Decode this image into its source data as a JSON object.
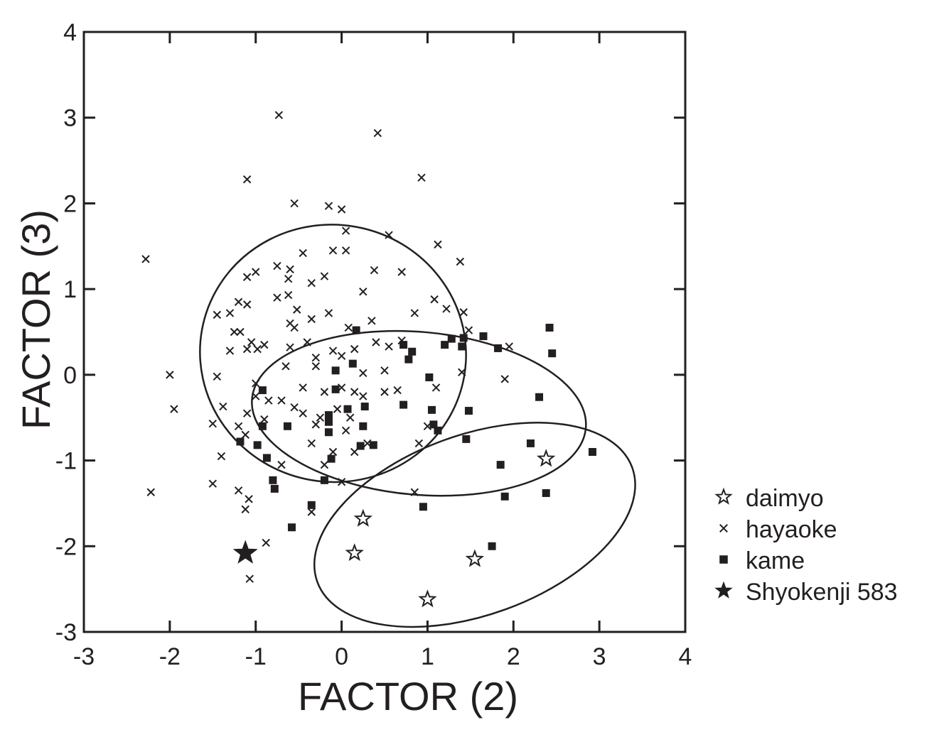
{
  "chart_data": {
    "type": "scatter",
    "xlabel": "FACTOR (2)",
    "ylabel": "FACTOR (3)",
    "xlim": [
      -3,
      4
    ],
    "ylim": [
      -3,
      4
    ],
    "xticks": [
      "-3",
      "-2",
      "-1",
      "0",
      "1",
      "2",
      "3",
      "4"
    ],
    "yticks": [
      "-3",
      "-2",
      "-1",
      "0",
      "1",
      "2",
      "3",
      "4"
    ],
    "grid": false,
    "legend_position": "right-bottom",
    "colors": {
      "ink": "#231f20",
      "background": "#ffffff"
    },
    "series": [
      {
        "name": "daimyo",
        "marker": "star-open",
        "points": [
          [
            2.38,
            -0.98
          ],
          [
            0.25,
            -1.68
          ],
          [
            0.15,
            -2.08
          ],
          [
            1.55,
            -2.15
          ],
          [
            1.0,
            -2.62
          ]
        ]
      },
      {
        "name": "hayaoke",
        "marker": "x",
        "points": [
          [
            -0.73,
            3.03
          ],
          [
            0.42,
            2.82
          ],
          [
            -1.1,
            2.28
          ],
          [
            0.93,
            2.3
          ],
          [
            -0.55,
            2.0
          ],
          [
            -0.15,
            1.97
          ],
          [
            0.0,
            1.93
          ],
          [
            0.05,
            1.68
          ],
          [
            0.55,
            1.63
          ],
          [
            1.12,
            1.52
          ],
          [
            -0.45,
            1.42
          ],
          [
            -0.1,
            1.45
          ],
          [
            0.05,
            1.45
          ],
          [
            1.38,
            1.32
          ],
          [
            -2.28,
            1.35
          ],
          [
            -1.0,
            1.2
          ],
          [
            -0.75,
            1.27
          ],
          [
            -0.6,
            1.23
          ],
          [
            -0.2,
            1.15
          ],
          [
            -0.35,
            1.07
          ],
          [
            0.38,
            1.22
          ],
          [
            0.7,
            1.2
          ],
          [
            -1.1,
            1.14
          ],
          [
            -0.62,
            1.12
          ],
          [
            0.25,
            0.97
          ],
          [
            -0.75,
            0.9
          ],
          [
            -0.62,
            0.93
          ],
          [
            1.08,
            0.88
          ],
          [
            -1.2,
            0.85
          ],
          [
            -1.1,
            0.82
          ],
          [
            -0.52,
            0.76
          ],
          [
            -1.3,
            0.72
          ],
          [
            -1.45,
            0.7
          ],
          [
            -0.15,
            0.72
          ],
          [
            -0.35,
            0.65
          ],
          [
            0.85,
            0.72
          ],
          [
            1.22,
            0.77
          ],
          [
            1.42,
            0.73
          ],
          [
            -0.6,
            0.6
          ],
          [
            -0.55,
            0.55
          ],
          [
            0.35,
            0.63
          ],
          [
            -1.18,
            0.5
          ],
          [
            -1.25,
            0.5
          ],
          [
            -1.05,
            0.38
          ],
          [
            -0.9,
            0.35
          ],
          [
            -0.4,
            0.38
          ],
          [
            -0.6,
            0.32
          ],
          [
            0.08,
            0.55
          ],
          [
            0.7,
            0.4
          ],
          [
            1.48,
            0.52
          ],
          [
            1.95,
            0.33
          ],
          [
            -1.3,
            0.28
          ],
          [
            -1.1,
            0.3
          ],
          [
            -0.98,
            0.3
          ],
          [
            -0.3,
            0.2
          ],
          [
            -0.1,
            0.28
          ],
          [
            0.0,
            0.22
          ],
          [
            0.15,
            0.3
          ],
          [
            0.55,
            0.33
          ],
          [
            0.4,
            0.38
          ],
          [
            -1.45,
            -0.02
          ],
          [
            -2.0,
            0.0
          ],
          [
            -1.0,
            -0.1
          ],
          [
            -0.65,
            0.1
          ],
          [
            -0.3,
            0.1
          ],
          [
            0.25,
            0.02
          ],
          [
            0.5,
            0.05
          ],
          [
            1.4,
            0.03
          ],
          [
            1.9,
            -0.05
          ],
          [
            -1.0,
            -0.25
          ],
          [
            -0.85,
            -0.3
          ],
          [
            -0.7,
            -0.3
          ],
          [
            -0.45,
            -0.15
          ],
          [
            -0.2,
            -0.2
          ],
          [
            0.0,
            -0.15
          ],
          [
            0.15,
            -0.2
          ],
          [
            0.25,
            -0.25
          ],
          [
            0.5,
            -0.2
          ],
          [
            0.65,
            -0.18
          ],
          [
            1.1,
            -0.15
          ],
          [
            -1.95,
            -0.4
          ],
          [
            -1.38,
            -0.37
          ],
          [
            -1.1,
            -0.45
          ],
          [
            -0.55,
            -0.38
          ],
          [
            -0.45,
            -0.45
          ],
          [
            -0.25,
            -0.5
          ],
          [
            -0.05,
            -0.4
          ],
          [
            0.1,
            -0.5
          ],
          [
            -1.5,
            -0.57
          ],
          [
            -1.2,
            -0.6
          ],
          [
            -1.12,
            -0.7
          ],
          [
            -0.9,
            -0.52
          ],
          [
            -0.3,
            -0.58
          ],
          [
            0.05,
            -0.65
          ],
          [
            1.0,
            -0.6
          ],
          [
            -1.4,
            -0.95
          ],
          [
            -0.7,
            -1.05
          ],
          [
            -0.35,
            -0.8
          ],
          [
            -0.1,
            -0.9
          ],
          [
            0.15,
            -0.9
          ],
          [
            0.3,
            -0.8
          ],
          [
            0.9,
            -0.8
          ],
          [
            -0.2,
            -1.05
          ],
          [
            0.0,
            -1.25
          ],
          [
            -1.5,
            -1.27
          ],
          [
            -1.2,
            -1.35
          ],
          [
            -1.08,
            -1.45
          ],
          [
            -1.12,
            -1.57
          ],
          [
            -0.35,
            -1.6
          ],
          [
            -2.22,
            -1.37
          ],
          [
            0.85,
            -1.37
          ],
          [
            -0.88,
            -1.96
          ],
          [
            -1.07,
            -2.38
          ]
        ]
      },
      {
        "name": "kame",
        "marker": "square",
        "points": [
          [
            2.42,
            0.55
          ],
          [
            2.45,
            0.25
          ],
          [
            1.65,
            0.45
          ],
          [
            1.42,
            0.43
          ],
          [
            1.28,
            0.42
          ],
          [
            1.4,
            0.33
          ],
          [
            1.2,
            0.35
          ],
          [
            1.82,
            0.31
          ],
          [
            0.72,
            0.35
          ],
          [
            0.82,
            0.27
          ],
          [
            0.78,
            0.18
          ],
          [
            0.17,
            0.52
          ],
          [
            0.13,
            0.13
          ],
          [
            -0.07,
            0.05
          ],
          [
            1.02,
            -0.03
          ],
          [
            0.72,
            -0.35
          ],
          [
            2.3,
            -0.26
          ],
          [
            -0.92,
            -0.18
          ],
          [
            -0.07,
            -0.17
          ],
          [
            0.07,
            -0.4
          ],
          [
            0.27,
            -0.37
          ],
          [
            1.05,
            -0.41
          ],
          [
            1.48,
            -0.42
          ],
          [
            -0.15,
            -0.47
          ],
          [
            -0.15,
            -0.55
          ],
          [
            -0.15,
            -0.67
          ],
          [
            0.25,
            -0.6
          ],
          [
            1.07,
            -0.58
          ],
          [
            1.12,
            -0.65
          ],
          [
            1.45,
            -0.75
          ],
          [
            2.2,
            -0.8
          ],
          [
            2.92,
            -0.9
          ],
          [
            -1.18,
            -0.78
          ],
          [
            -0.98,
            -0.82
          ],
          [
            0.22,
            -0.83
          ],
          [
            0.37,
            -0.82
          ],
          [
            -0.87,
            -0.97
          ],
          [
            -0.12,
            -0.98
          ],
          [
            1.85,
            -1.05
          ],
          [
            -0.8,
            -1.23
          ],
          [
            -0.2,
            -1.23
          ],
          [
            -0.78,
            -1.33
          ],
          [
            0.95,
            -1.54
          ],
          [
            1.9,
            -1.42
          ],
          [
            2.38,
            -1.38
          ],
          [
            -0.35,
            -1.52
          ],
          [
            -0.58,
            -1.78
          ],
          [
            1.75,
            -2.0
          ],
          [
            -0.92,
            -0.6
          ],
          [
            -0.63,
            -0.6
          ]
        ]
      },
      {
        "name": "Shyokenji 583",
        "marker": "star-filled",
        "points": [
          [
            -1.12,
            -2.08
          ]
        ]
      }
    ],
    "ellipses": [
      {
        "series": "hayaoke",
        "center": [
          -0.1,
          0.25
        ],
        "radii": [
          1.55,
          1.5
        ],
        "angle_deg": -10
      },
      {
        "series": "kame",
        "center": [
          0.9,
          -0.45
        ],
        "radii": [
          1.95,
          0.95
        ],
        "angle_deg": -5
      },
      {
        "series": "daimyo",
        "center": [
          1.55,
          -1.75
        ],
        "radii": [
          1.95,
          1.05
        ],
        "angle_deg": 20
      }
    ]
  }
}
